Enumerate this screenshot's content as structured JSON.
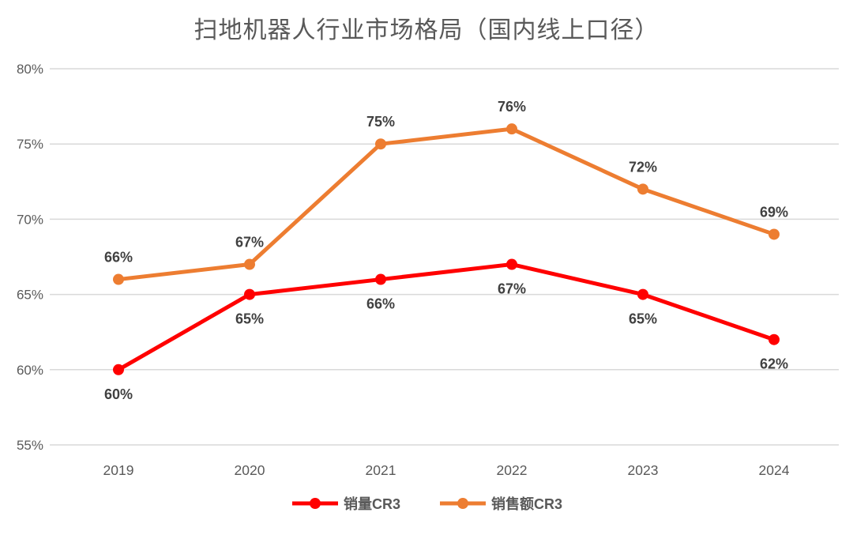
{
  "title": "扫地机器人行业市场格局（国内线上口径）",
  "colors": {
    "background": "#ffffff",
    "grid": "#d9d9d9",
    "axis_text": "#595959",
    "label_text": "#404040",
    "title_text": "#595959",
    "series_volume": "#ff0000",
    "series_value": "#ed7d31"
  },
  "chart_data": {
    "type": "line",
    "title": "扫地机器人行业市场格局（国内线上口径）",
    "xlabel": "",
    "ylabel": "",
    "categories": [
      "2019",
      "2020",
      "2021",
      "2022",
      "2023",
      "2024"
    ],
    "series": [
      {
        "key": "volume-cr3",
        "name": "销量CR3",
        "color": "#ff0000",
        "values": [
          60,
          65,
          66,
          67,
          65,
          62
        ],
        "labels": [
          "60%",
          "65%",
          "66%",
          "67%",
          "65%",
          "62%"
        ],
        "label_position": "below"
      },
      {
        "key": "value-cr3",
        "name": "销售额CR3",
        "color": "#ed7d31",
        "values": [
          66,
          67,
          75,
          76,
          72,
          69
        ],
        "labels": [
          "66%",
          "67%",
          "75%",
          "76%",
          "72%",
          "69%"
        ],
        "label_position": "above"
      }
    ],
    "ylim": [
      55,
      80
    ],
    "ytick_step": 5,
    "ytick_labels": [
      "55%",
      "60%",
      "65%",
      "70%",
      "75%",
      "80%"
    ],
    "grid": "horizontal",
    "legend_position": "bottom",
    "marker": "circle"
  }
}
